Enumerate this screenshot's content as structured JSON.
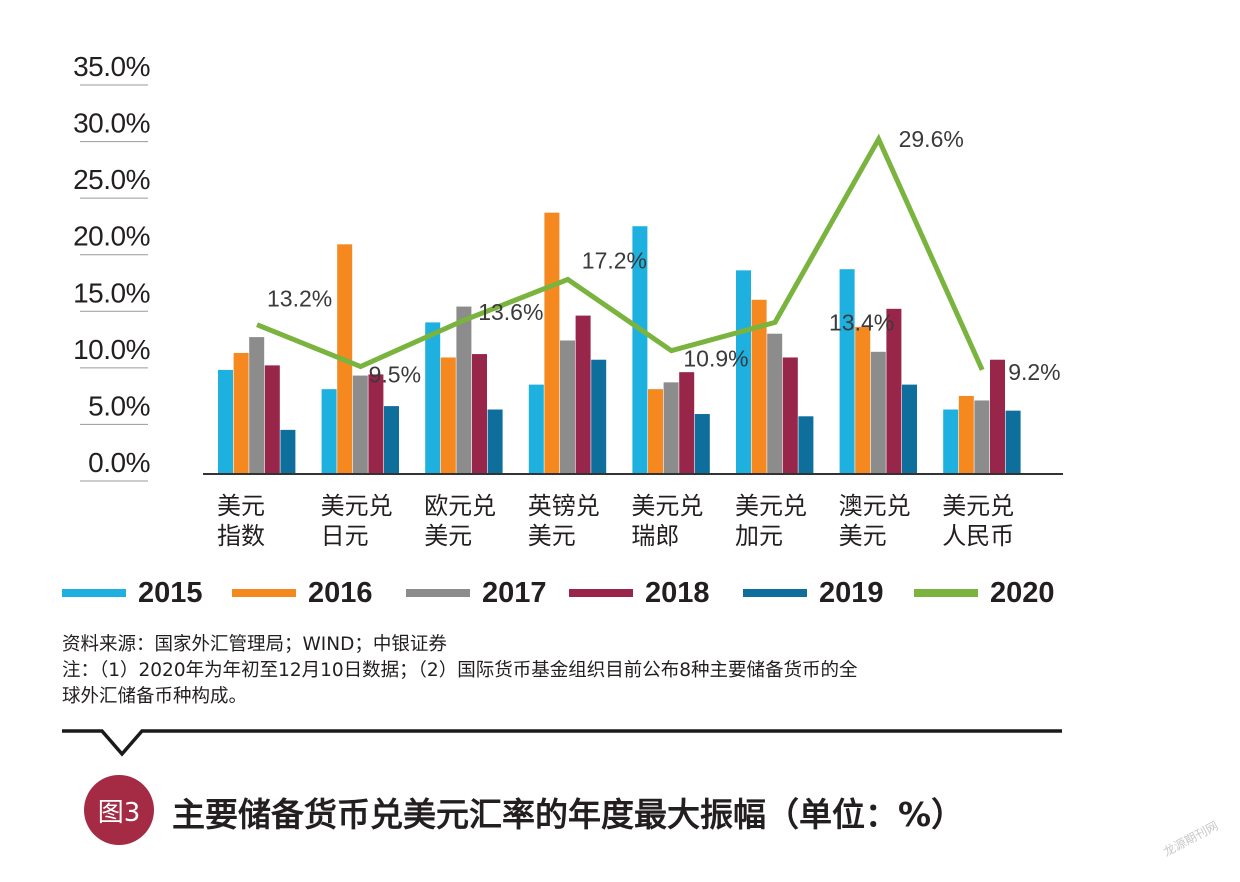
{
  "chart_data": {
    "type": "bar",
    "title": "主要储备货币兑美元汇率的年度最大振幅（单位：%）",
    "ylim": [
      0,
      35
    ],
    "yticks": [
      "0.0%",
      "5.0%",
      "10.0%",
      "15.0%",
      "20.0%",
      "25.0%",
      "30.0%",
      "35.0%"
    ],
    "categories": [
      [
        "美元",
        "指数"
      ],
      [
        "美元兑",
        "日元"
      ],
      [
        "欧元兑",
        "美元"
      ],
      [
        "英镑兑",
        "美元"
      ],
      [
        "美元兑",
        "瑞郎"
      ],
      [
        "美元兑",
        "加元"
      ],
      [
        "澳元兑",
        "美元"
      ],
      [
        "美元兑",
        "人民币"
      ]
    ],
    "series": [
      {
        "name": "2015",
        "type": "bar",
        "color": "#1eb1e0",
        "values": [
          9.2,
          7.5,
          13.4,
          7.9,
          21.9,
          18.0,
          18.1,
          5.7
        ]
      },
      {
        "name": "2016",
        "type": "bar",
        "color": "#f5891f",
        "values": [
          10.7,
          20.3,
          10.3,
          23.1,
          7.5,
          15.4,
          13.0,
          6.9
        ]
      },
      {
        "name": "2017",
        "type": "bar",
        "color": "#8c8c8c",
        "values": [
          12.1,
          8.7,
          14.8,
          11.8,
          8.1,
          12.4,
          10.8,
          6.5
        ]
      },
      {
        "name": "2018",
        "type": "bar",
        "color": "#98254a",
        "values": [
          9.6,
          8.8,
          10.6,
          14.0,
          9.0,
          10.3,
          14.6,
          10.1
        ]
      },
      {
        "name": "2019",
        "type": "bar",
        "color": "#0e6e9c",
        "values": [
          3.9,
          6.0,
          5.7,
          10.1,
          5.3,
          5.1,
          7.9,
          5.6
        ]
      },
      {
        "name": "2020",
        "type": "line",
        "color": "#7ab33e",
        "values": [
          13.2,
          9.5,
          13.6,
          17.2,
          10.9,
          13.4,
          29.6,
          9.2
        ],
        "labels": [
          "13.2%",
          "9.5%",
          "13.6%",
          "17.2%",
          "10.9%",
          "13.4%",
          "29.6%",
          "9.2%"
        ]
      }
    ]
  },
  "notes": {
    "source": "资料来源：国家外汇管理局；WIND；中银证券",
    "note_line1": "注：（1）2020年为年初至12月10日数据；（2）国际货币基金组织目前公布8种主要储备货币的全",
    "note_line2": "球外汇储备币种构成。"
  },
  "figure": {
    "badge": "图3",
    "title": "主要储备货币兑美元汇率的年度最大振幅（单位：%）"
  },
  "watermark": "龙源期刊网"
}
